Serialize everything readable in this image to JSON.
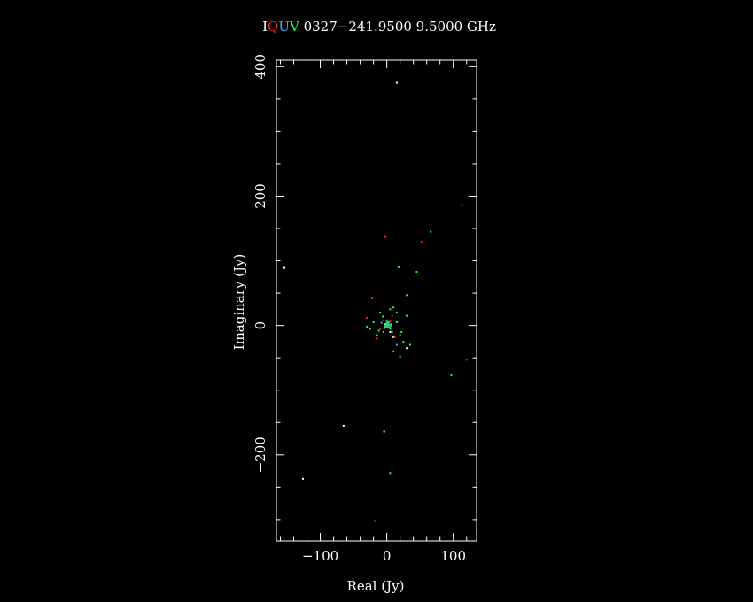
{
  "chart_data": {
    "type": "scatter",
    "title_parts": [
      {
        "text": "I",
        "color": "#ffffff"
      },
      {
        "text": "Q",
        "color": "#ff2020"
      },
      {
        "text": "U",
        "color": "#20c0ff"
      },
      {
        "text": "V",
        "color": "#20ff40"
      },
      {
        "text": " 0327−241.9500  9.5000 GHz",
        "color": "#ffffff"
      }
    ],
    "xlabel": "Real (Jy)",
    "ylabel": "Imaginary (Jy)",
    "xlim": [
      -166,
      135
    ],
    "ylim": [
      -333,
      410
    ],
    "xticks": [
      -100,
      0,
      100
    ],
    "xtick_labels": [
      "−100",
      "0",
      "100"
    ],
    "yticks": [
      -200,
      0,
      200,
      400
    ],
    "ytick_labels": [
      "−200",
      "0",
      "200",
      "400"
    ],
    "x_minor_step": 20,
    "y_minor_step": 50,
    "grid": false,
    "series": [
      {
        "color": "#ffffff",
        "points": [
          [
            15,
            375
          ],
          [
            -154,
            89
          ],
          [
            -65,
            -155
          ],
          [
            -126,
            -237
          ],
          [
            -4,
            -164
          ],
          [
            30,
            -35
          ],
          [
            5,
            -10
          ],
          [
            10,
            -18
          ],
          [
            -2,
            2
          ]
        ]
      },
      {
        "color": "#ff2020",
        "points": [
          [
            113,
            186
          ],
          [
            -2,
            137
          ],
          [
            52,
            129
          ],
          [
            120,
            -53
          ],
          [
            -18,
            -302
          ],
          [
            -22,
            42
          ],
          [
            -30,
            12
          ],
          [
            -10,
            -5
          ],
          [
            0,
            -2
          ],
          [
            5,
            7
          ],
          [
            12,
            -18
          ],
          [
            -15,
            -20
          ],
          [
            8,
            15
          ],
          [
            -5,
            8
          ]
        ]
      },
      {
        "color": "#20c0ff",
        "points": [
          [
            15,
            -30
          ],
          [
            -3,
            -2
          ],
          [
            2,
            3
          ],
          [
            5,
            -5
          ],
          [
            -8,
            4
          ],
          [
            1,
            0
          ],
          [
            3,
            1
          ],
          [
            -2,
            -3
          ],
          [
            6,
            2
          ],
          [
            0,
            5
          ],
          [
            -4,
            -4
          ]
        ]
      },
      {
        "color": "#20ff40",
        "points": [
          [
            66,
            145
          ],
          [
            18,
            90
          ],
          [
            45,
            83
          ],
          [
            30,
            47
          ],
          [
            97,
            -77
          ],
          [
            5,
            -228
          ],
          [
            -10,
            20
          ],
          [
            5,
            25
          ],
          [
            10,
            28
          ],
          [
            15,
            20
          ],
          [
            -20,
            5
          ],
          [
            -5,
            -10
          ],
          [
            0,
            0
          ],
          [
            2,
            3
          ],
          [
            4,
            -2
          ],
          [
            -1,
            2
          ],
          [
            1,
            -3
          ],
          [
            3,
            5
          ],
          [
            -3,
            -1
          ],
          [
            0,
            8
          ],
          [
            6,
            0
          ],
          [
            20,
            -15
          ],
          [
            25,
            -25
          ],
          [
            35,
            -30
          ],
          [
            10,
            -40
          ],
          [
            30,
            15
          ],
          [
            -25,
            -5
          ],
          [
            -30,
            -2
          ],
          [
            -15,
            -15
          ],
          [
            8,
            -10
          ],
          [
            20,
            -48
          ],
          [
            15,
            5
          ],
          [
            -6,
            14
          ],
          [
            22,
            -10
          ],
          [
            -12,
            -8
          ]
        ]
      }
    ]
  }
}
